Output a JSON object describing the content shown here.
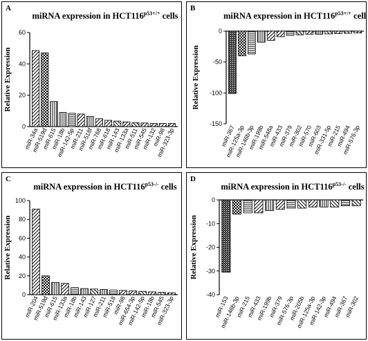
{
  "chart_data": [
    {
      "panel": "A",
      "type": "bar",
      "title": "miRNA expression in HCT116",
      "title_sup": "p53+/+",
      "title_suffix": " cells",
      "ylabel": "Relative Expression",
      "ylim": [
        0,
        60
      ],
      "yticks": [
        0,
        20,
        40,
        60
      ],
      "categories": [
        "miR-34a",
        "miR-519d",
        "miR-615",
        "miR-18b",
        "miR-142-5p",
        "miR-211",
        "miR-518f",
        "miR-768",
        "miR-618",
        "miR-143",
        "miR-133a",
        "miR-511",
        "miR-545",
        "miR-132",
        "miR-98",
        "miR-323-3p"
      ],
      "values": [
        48.5,
        47,
        16,
        9,
        8.5,
        8,
        6.5,
        5,
        4,
        3.5,
        3,
        2.5,
        2.3,
        2,
        2,
        2
      ],
      "patterns": [
        "hatch-fwd",
        "checker",
        "vlines",
        "vlines",
        "hlines",
        "hatch-fwd",
        "vlines",
        "hatch-fwd",
        "hatch-fwd",
        "hatch-back",
        "hatch-fwd",
        "hatch-back",
        "hatch-fwd",
        "hatch-fwd",
        "hatch-fwd",
        "hatch-fwd"
      ]
    },
    {
      "panel": "B",
      "type": "bar",
      "title": "miRNA expression in HCT116",
      "title_sup": "p53+/+",
      "title_suffix": " cells",
      "ylabel": "Relative Expression",
      "ylim": [
        -150,
        0
      ],
      "yticks": [
        0,
        -50,
        -100,
        -150
      ],
      "categories": [
        "miR-367",
        "miR-125a-3p",
        "miR-146b-3p",
        "miR-199b",
        "miR-548a",
        "miR-433",
        "miR-379",
        "miR-302",
        "miR-570",
        "miR-603",
        "miR-331-5p",
        "miR-215",
        "miR-494",
        "miR-576-3p"
      ],
      "values": [
        -101,
        -40,
        -37,
        -18,
        -15,
        -9,
        -7,
        -6,
        -5,
        -5,
        -4.5,
        -4,
        -3.5,
        -3
      ],
      "patterns": [
        "dense",
        "checker",
        "hlines",
        "vlines",
        "hatch-fwd",
        "hatch-fwd",
        "hlines",
        "hatch-back",
        "hatch-fwd",
        "vlines",
        "hatch-back",
        "hatch-fwd",
        "hatch-back",
        "hatch-fwd"
      ]
    },
    {
      "panel": "C",
      "type": "bar",
      "title": "miRNA expression in HCT116",
      "title_sup": "p53-/-",
      "title_suffix": " cells",
      "ylabel": "Relative Expression",
      "ylim": [
        0,
        100
      ],
      "yticks": [
        0,
        20,
        40,
        60,
        80,
        100
      ],
      "categories": [
        "miR-204",
        "miR-519d",
        "miR-615",
        "miR-133a",
        "miR-18b",
        "miR-143",
        "miR-127",
        "miR-211",
        "miR-518",
        "miR-98",
        "miR-654-3p",
        "miR-142-5p",
        "miR-18b",
        "miR-545",
        "miR-323-3p"
      ],
      "values": [
        91,
        20,
        13,
        12,
        7.5,
        6.5,
        6,
        5.5,
        5,
        4.5,
        4,
        3.5,
        3,
        2.5,
        2
      ],
      "patterns": [
        "hatch-fwd",
        "checker",
        "vlines",
        "hatch-fwd",
        "hlines",
        "vlines",
        "hatch-back",
        "vlines",
        "hlines",
        "hatch-fwd",
        "hatch-fwd",
        "hatch-back",
        "hatch-fwd",
        "hatch-back",
        "hatch-fwd"
      ]
    },
    {
      "panel": "D",
      "type": "bar",
      "title": "miRNA expression in HCT116",
      "title_sup": "p53-/-",
      "title_suffix": " cells",
      "ylabel": "Relative Expression",
      "ylim": [
        -40,
        0
      ],
      "yticks": [
        0,
        -10,
        -20,
        -30,
        -40
      ],
      "categories": [
        "miR-153",
        "miR-146b-3p",
        "miR-215",
        "miR-433",
        "miR-199b",
        "miR-379",
        "miR-576-3p",
        "miR-205b",
        "miR-125a-3p",
        "miR-142-3p",
        "miR-494",
        "miR-367",
        "miR-302"
      ],
      "values": [
        -30.5,
        -6,
        -5.5,
        -5.5,
        -4.5,
        -4,
        -3.5,
        -3.5,
        -3,
        -3,
        -3,
        -2.5,
        -2.5
      ],
      "patterns": [
        "dense",
        "checker",
        "hlines",
        "hatch-fwd",
        "vlines",
        "hatch-fwd",
        "hlines",
        "hatch-back",
        "hatch-fwd",
        "vlines",
        "hatch-back",
        "hlines",
        "hatch-back"
      ]
    }
  ]
}
